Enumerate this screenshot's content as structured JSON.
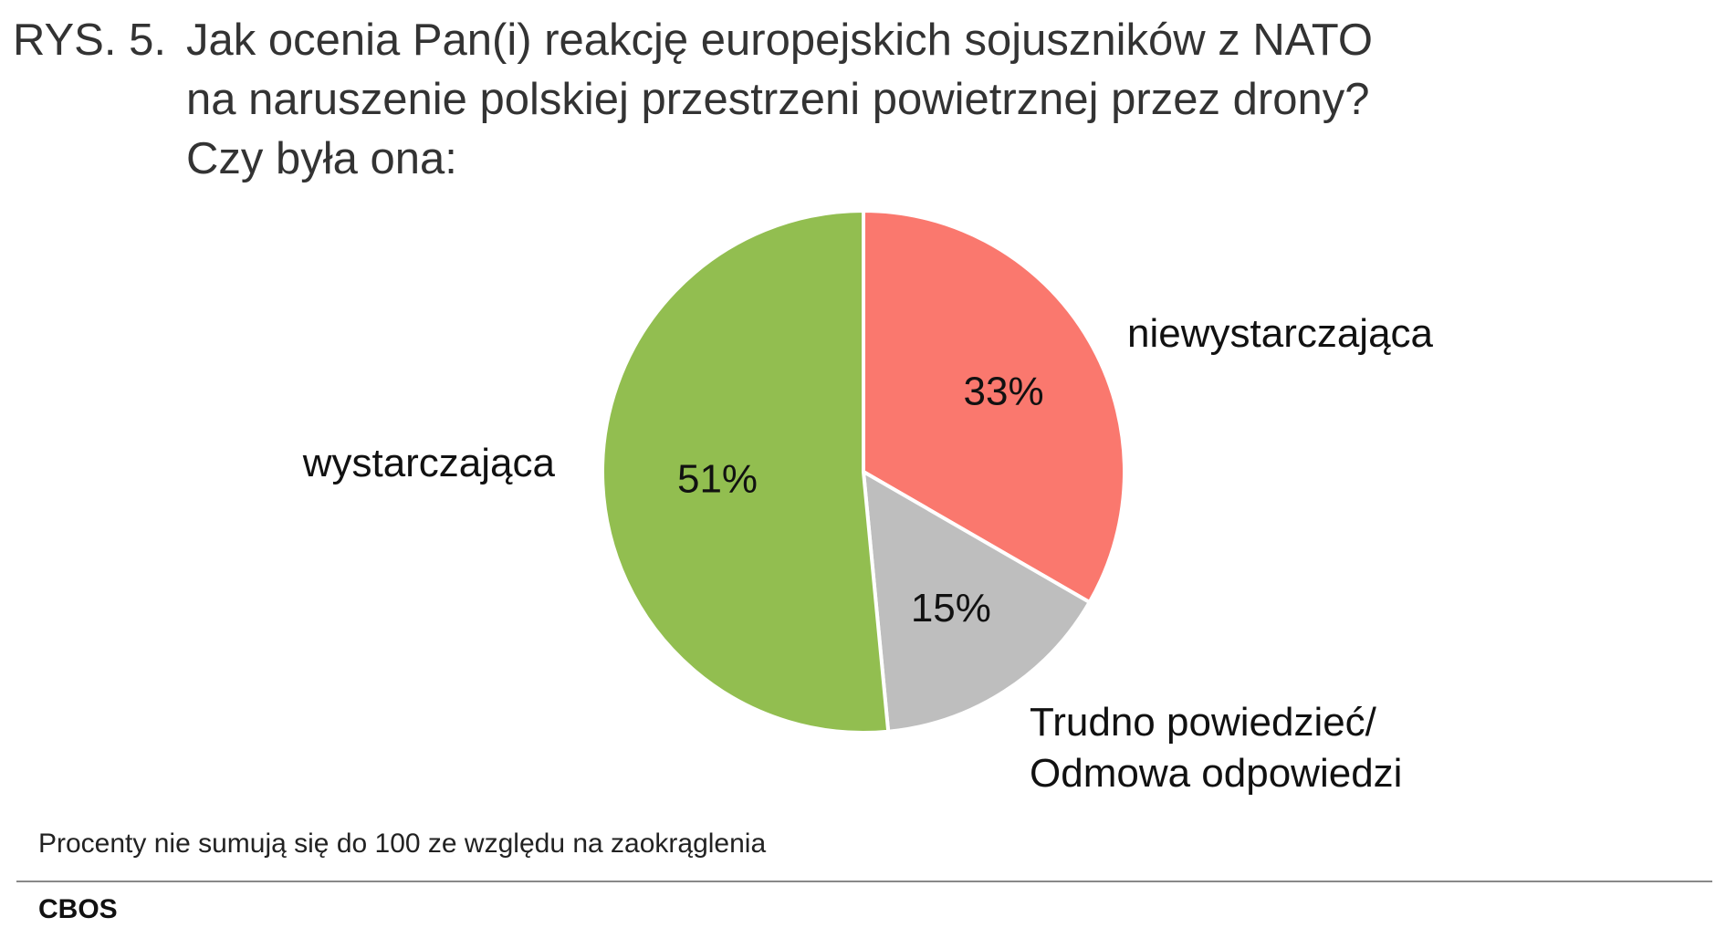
{
  "title": {
    "prefix": "RYS. 5.",
    "lines": [
      "Jak ocenia Pan(i) reakcję europejskich sojuszników z NATO",
      "na naruszenie polskiej przestrzeni powietrznej przez drony?",
      "Czy była ona:"
    ]
  },
  "chart_data": {
    "type": "pie",
    "title": "Jak ocenia Pan(i) reakcję europejskich sojuszników z NATO na naruszenie polskiej przestrzeni powietrznej przez drony? Czy była ona:",
    "start": "12 o'clock, clockwise",
    "slices": [
      {
        "name": "niewystarczająca",
        "label_lines": [
          "niewystarczająca"
        ],
        "value": 33,
        "value_label": "33%",
        "color": "#FA786E"
      },
      {
        "name": "Trudno powiedzieć/ Odmowa odpowiedzi",
        "label_lines": [
          "Trudno powiedzieć/",
          "Odmowa odpowiedzi"
        ],
        "value": 15,
        "value_label": "15%",
        "color": "#BEBEBE"
      },
      {
        "name": "wystarczająca",
        "label_lines": [
          "wystarczająca"
        ],
        "value": 51,
        "value_label": "51%",
        "color": "#92BE50"
      }
    ]
  },
  "footnote": "Procenty nie sumują się do 100 ze względu na zaokrąglenia",
  "source": "CBOS"
}
